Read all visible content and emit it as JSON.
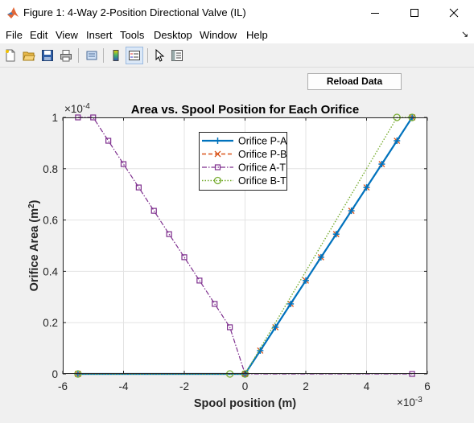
{
  "window": {
    "title": "Figure 1: 4-Way 2-Position Directional Valve (IL)"
  },
  "menu": [
    "File",
    "Edit",
    "View",
    "Insert",
    "Tools",
    "Desktop",
    "Window",
    "Help"
  ],
  "toolbar": {
    "icons": [
      "new-figure-icon",
      "open-file-icon",
      "save-icon",
      "print-icon",
      "print-preview-icon",
      "colorbar-icon",
      "legend-icon",
      "pointer-icon",
      "property-inspector-icon"
    ]
  },
  "reload_button": {
    "label": "Reload Data"
  },
  "colors": {
    "orifice_pa": "#0072bd",
    "orifice_pb": "#d95319",
    "orifice_at": "#7e2f8e",
    "orifice_bt": "#77ac30"
  },
  "chart_data": {
    "type": "line",
    "title": "Area vs. Spool Position for Each Orifice",
    "xlabel": "Spool position (m)",
    "ylabel": "Orifice Area (m2)",
    "xlim": [
      -0.006,
      0.006
    ],
    "ylim": [
      0,
      0.0001
    ],
    "x_exponent_label": "×10",
    "x_exponent": "-3",
    "y_exponent_label": "×10",
    "y_exponent": "-4",
    "xticks": [
      "-6",
      "-4",
      "-2",
      "0",
      "2",
      "4",
      "6"
    ],
    "yticks": [
      "0",
      "0.2",
      "0.4",
      "0.6",
      "0.8",
      "1"
    ],
    "grid": true,
    "legend_position": "top-center",
    "series": [
      {
        "name": "Orifice P-A",
        "x": [
          -0.0055,
          0,
          0.0005,
          0.001,
          0.0015,
          0.002,
          0.0025,
          0.003,
          0.0035,
          0.004,
          0.0045,
          0.005,
          0.0055
        ],
        "y": [
          0,
          0,
          9.1e-06,
          1.82e-05,
          2.73e-05,
          3.64e-05,
          4.55e-05,
          5.45e-05,
          6.36e-05,
          7.27e-05,
          8.18e-05,
          9.09e-05,
          0.0001
        ]
      },
      {
        "name": "Orifice P-B",
        "x": [
          -0.0055,
          0,
          0.0005,
          0.001,
          0.0015,
          0.002,
          0.0025,
          0.003,
          0.0035,
          0.004,
          0.0045,
          0.005,
          0.0055
        ],
        "y": [
          0,
          0,
          9.1e-06,
          1.82e-05,
          2.73e-05,
          3.64e-05,
          4.55e-05,
          5.45e-05,
          6.36e-05,
          7.27e-05,
          8.18e-05,
          9.09e-05,
          0.0001
        ]
      },
      {
        "name": "Orifice A-T",
        "x": [
          -0.0055,
          -0.005,
          -0.0045,
          -0.004,
          -0.0035,
          -0.003,
          -0.0025,
          -0.002,
          -0.0015,
          -0.001,
          -0.0005,
          0,
          0.0055
        ],
        "y": [
          0.0001,
          0.0001,
          9.09e-05,
          8.18e-05,
          7.27e-05,
          6.36e-05,
          5.45e-05,
          4.55e-05,
          3.64e-05,
          2.73e-05,
          1.82e-05,
          0,
          0
        ]
      },
      {
        "name": "Orifice B-T",
        "x": [
          -0.0055,
          -0.0005,
          0,
          0.005,
          0.0055
        ],
        "y": [
          0,
          0,
          0,
          0.0001,
          0.0001
        ]
      }
    ]
  }
}
